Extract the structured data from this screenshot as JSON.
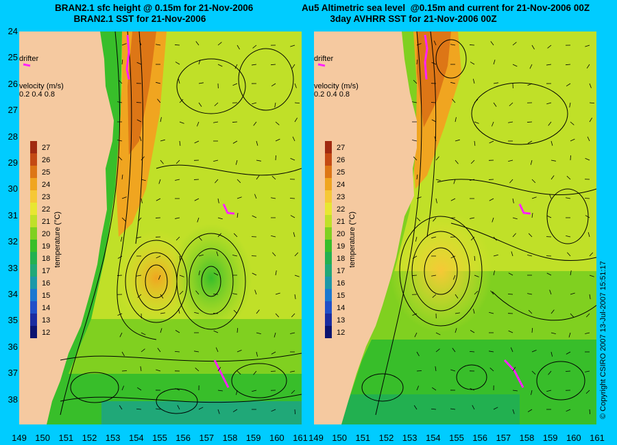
{
  "left_panel": {
    "title_line1": "BRAN2.1 sfc height @ 0.15m for 21-Nov-2006",
    "title_line2": "BRAN2.1 SST for 21-Nov-2006",
    "drifter_label": "drifter",
    "velocity_label": "velocity (m/s)",
    "velocity_scale": "0.2 0.4 0.8",
    "colorbar": {
      "title": "temperature (°C)",
      "ticks": [
        "27",
        "26",
        "25",
        "24",
        "23",
        "22",
        "21",
        "20",
        "19",
        "18",
        "17",
        "16",
        "15",
        "14",
        "13",
        "12"
      ],
      "colors": [
        "#a02a10",
        "#c44a14",
        "#dd7616",
        "#f0a520",
        "#f6c836",
        "#e8e632",
        "#c0e028",
        "#80d020",
        "#38be2a",
        "#22b050",
        "#20a878",
        "#1c98a8",
        "#1a78d0",
        "#2050c8",
        "#1a2ca0",
        "#0c1470"
      ]
    }
  },
  "right_panel": {
    "title_line1": "Au5 Altimetric sea level  @0.15m and current for 21-Nov-2006 00Z",
    "title_line2": "3day AVHRR SST for 21-Nov-2006 00Z",
    "drifter_label": "drifter",
    "velocity_label": "velocity (m/s)",
    "velocity_scale": "0.2 0.4 0.8",
    "colorbar": {
      "title": "temperature (°C)",
      "ticks": [
        "27",
        "26",
        "25",
        "24",
        "23",
        "22",
        "21",
        "20",
        "19",
        "18",
        "17",
        "16",
        "15",
        "14",
        "13",
        "12"
      ],
      "colors": [
        "#a02a10",
        "#c44a14",
        "#dd7616",
        "#f0a520",
        "#f6c836",
        "#e8e632",
        "#c0e028",
        "#80d020",
        "#38be2a",
        "#22b050",
        "#20a878",
        "#1c98a8",
        "#1a78d0",
        "#2050c8",
        "#1a2ca0",
        "#0c1470"
      ]
    }
  },
  "lat_ticks": [
    "24",
    "25",
    "26",
    "27",
    "28",
    "29",
    "30",
    "31",
    "32",
    "33",
    "34",
    "35",
    "36",
    "37",
    "38"
  ],
  "lon_ticks_left": [
    "149",
    "150",
    "151",
    "152",
    "153",
    "154",
    "155",
    "156",
    "157",
    "158",
    "159",
    "160",
    "161"
  ],
  "lon_ticks_right": [
    "149",
    "150",
    "151",
    "152",
    "153",
    "154",
    "155",
    "156",
    "157",
    "158",
    "159",
    "160",
    "161"
  ],
  "copyright": "© Copyright CSIRO 2007   13-Jul-2007 15:51:17",
  "colors": {
    "background": "#00ccff",
    "land": "#f5c9a0",
    "drifter": "#ff22ff",
    "contour": "#000000"
  }
}
